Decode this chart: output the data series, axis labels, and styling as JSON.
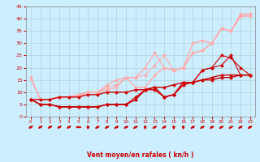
{
  "xlabel": "Vent moyen/en rafales ( kn/h )",
  "ylabel": "",
  "background_color": "#cceeff",
  "grid_color": "#aacccc",
  "xlim": [
    -0.5,
    23.5
  ],
  "ylim": [
    0,
    45
  ],
  "yticks": [
    0,
    5,
    10,
    15,
    20,
    25,
    30,
    35,
    40,
    45
  ],
  "xticks": [
    0,
    1,
    2,
    3,
    4,
    5,
    6,
    7,
    8,
    9,
    10,
    11,
    12,
    13,
    14,
    15,
    16,
    17,
    18,
    19,
    20,
    21,
    22,
    23
  ],
  "series": [
    {
      "x": [
        0,
        1,
        2,
        3,
        4,
        5,
        6,
        7,
        8,
        9,
        10,
        11,
        12,
        13,
        14,
        15,
        16,
        17,
        18,
        19,
        20,
        21,
        22,
        23
      ],
      "y": [
        7,
        7,
        7,
        8,
        8,
        8,
        9,
        9,
        10,
        10,
        10,
        11,
        11,
        12,
        12,
        13,
        14,
        14,
        15,
        15,
        16,
        16,
        17,
        17
      ],
      "color": "#cc0000",
      "lw": 1.0,
      "marker": "D",
      "ms": 1.5,
      "zorder": 5
    },
    {
      "x": [
        0,
        1,
        2,
        3,
        4,
        5,
        6,
        7,
        8,
        9,
        10,
        11,
        12,
        13,
        14,
        15,
        16,
        17,
        18,
        19,
        20,
        21,
        22,
        23
      ],
      "y": [
        7,
        5,
        5,
        4,
        4,
        4,
        4,
        4,
        5,
        5,
        5,
        8,
        11,
        12,
        8,
        9,
        14,
        14,
        19,
        20,
        25,
        24,
        20,
        17
      ],
      "color": "#cc0000",
      "lw": 0.8,
      "marker": "D",
      "ms": 1.5,
      "zorder": 4
    },
    {
      "x": [
        0,
        1,
        2,
        3,
        4,
        5,
        6,
        7,
        8,
        9,
        10,
        11,
        12,
        13,
        14,
        15,
        16,
        17,
        18,
        19,
        20,
        21,
        22,
        23
      ],
      "y": [
        7,
        5,
        5,
        4,
        4,
        4,
        4,
        4,
        5,
        5,
        5,
        7,
        11,
        12,
        8,
        9,
        14,
        14,
        19,
        20,
        21,
        25,
        17,
        17
      ],
      "color": "#cc0000",
      "lw": 0.8,
      "marker": "D",
      "ms": 1.5,
      "zorder": 4
    },
    {
      "x": [
        0,
        1,
        2,
        3,
        4,
        5,
        6,
        7,
        8,
        9,
        10,
        11,
        12,
        13,
        14,
        15,
        16,
        17,
        18,
        19,
        20,
        21,
        22,
        23
      ],
      "y": [
        7,
        5,
        5,
        4,
        4,
        4,
        4,
        4,
        5,
        5,
        5,
        7,
        11,
        11,
        8,
        9,
        13,
        14,
        15,
        16,
        17,
        17,
        17,
        17
      ],
      "color": "#cc0000",
      "lw": 1.0,
      "marker": "D",
      "ms": 1.5,
      "zorder": 4
    },
    {
      "x": [
        0,
        1,
        2,
        3,
        4,
        5,
        6,
        7,
        8,
        9,
        10,
        11,
        12,
        13,
        14,
        15,
        16,
        17,
        18,
        19,
        20,
        21,
        22,
        23
      ],
      "y": [
        16,
        7,
        7,
        8,
        8,
        8,
        10,
        10,
        11,
        12,
        16,
        12,
        12,
        17,
        20,
        19,
        20,
        30,
        31,
        30,
        36,
        35,
        41,
        41
      ],
      "color": "#ffaaaa",
      "lw": 1.0,
      "marker": "D",
      "ms": 1.5,
      "zorder": 3
    },
    {
      "x": [
        0,
        1,
        2,
        3,
        4,
        5,
        6,
        7,
        8,
        9,
        10,
        11,
        12,
        13,
        14,
        15,
        16,
        17,
        18,
        19,
        20,
        21,
        22,
        23
      ],
      "y": [
        16,
        7,
        7,
        8,
        8,
        9,
        10,
        10,
        12,
        13,
        16,
        16,
        17,
        21,
        25,
        19,
        20,
        26,
        27,
        30,
        36,
        35,
        42,
        42
      ],
      "color": "#ffaaaa",
      "lw": 0.8,
      "marker": "D",
      "ms": 1.5,
      "zorder": 3
    },
    {
      "x": [
        0,
        1,
        2,
        3,
        4,
        5,
        6,
        7,
        8,
        9,
        10,
        11,
        12,
        13,
        14,
        15,
        16,
        17,
        18,
        19,
        20,
        21,
        22,
        23
      ],
      "y": [
        16,
        7,
        7,
        8,
        8,
        9,
        10,
        10,
        13,
        15,
        16,
        16,
        20,
        26,
        20,
        19,
        20,
        26,
        27,
        30,
        36,
        35,
        41,
        42
      ],
      "color": "#ffaaaa",
      "lw": 1.0,
      "marker": "D",
      "ms": 1.5,
      "zorder": 3
    }
  ],
  "wind_dirs": [
    225,
    225,
    225,
    225,
    225,
    270,
    0,
    45,
    45,
    45,
    45,
    45,
    0,
    45,
    45,
    0,
    0,
    45,
    45,
    45,
    45,
    45,
    45,
    45
  ]
}
